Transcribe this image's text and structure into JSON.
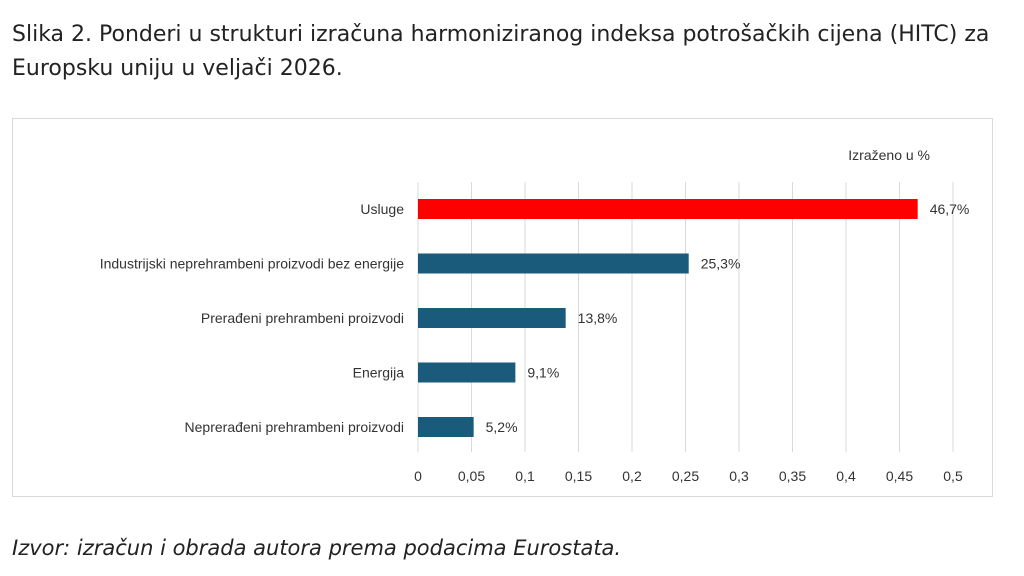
{
  "title": "Slika 2. Ponderi u strukturi izračuna harmoniziranog indeksa potrošačkih cijena (HITC) za Europsku uniju u veljači 2026.",
  "source": "Izvor: izračun i obrada autora prema podacima Eurostata.",
  "chart_data": {
    "type": "bar",
    "orientation": "horizontal",
    "annotation": "Izraženo u %",
    "categories": [
      "Usluge",
      "Industrijski neprehrambeni proizvodi bez energije",
      "Prerađeni prehrambeni proizvodi",
      "Energija",
      "Neprerađeni prehrambeni proizvodi"
    ],
    "values": [
      0.467,
      0.253,
      0.138,
      0.091,
      0.052
    ],
    "data_labels": [
      "46,7%",
      "25,3%",
      "13,8%",
      "9,1%",
      "5,2%"
    ],
    "colors": [
      "#ff0000",
      "#1a5a7a",
      "#1a5a7a",
      "#1a5a7a",
      "#1a5a7a"
    ],
    "xlim": [
      0,
      0.5
    ],
    "x_ticks": [
      0,
      0.05,
      0.1,
      0.15,
      0.2,
      0.25,
      0.3,
      0.35,
      0.4,
      0.45,
      0.5
    ],
    "x_tick_labels": [
      "0",
      "0,05",
      "0,1",
      "0,15",
      "0,2",
      "0,25",
      "0,3",
      "0,35",
      "0,4",
      "0,45",
      "0,5"
    ],
    "grid": true,
    "xlabel": "",
    "ylabel": ""
  }
}
